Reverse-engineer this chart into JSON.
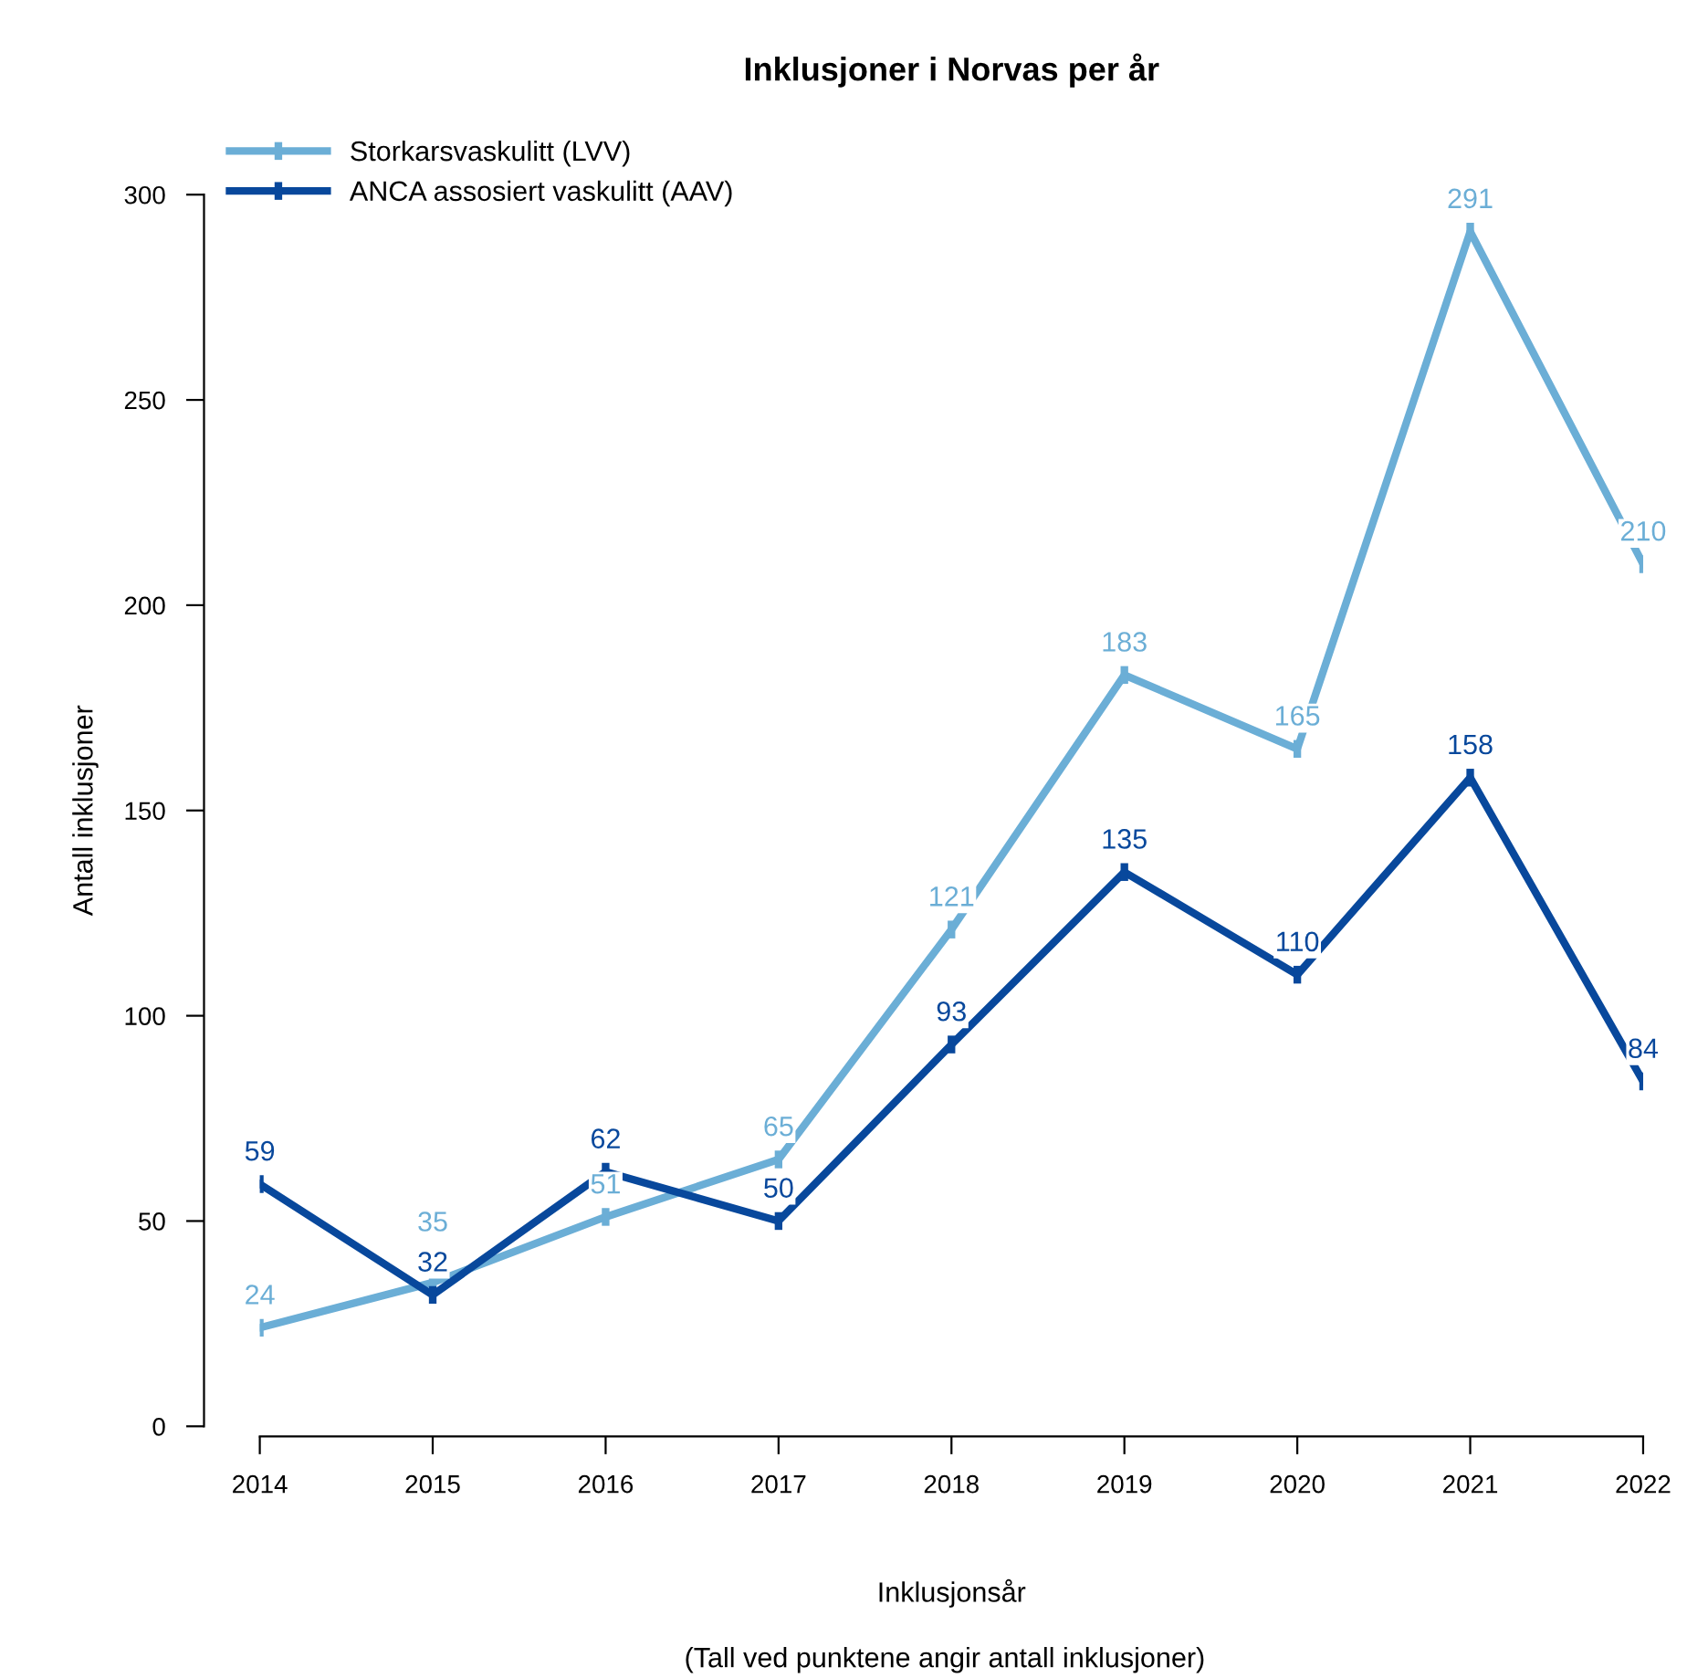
{
  "chart_data": {
    "type": "line",
    "title": "Inklusjoner i Norvas per år",
    "xlabel": "Inklusjonsår",
    "ylabel": "Antall inklusjoner",
    "annotations": [
      "(Tall ved punktene angir antall inklusjoner)"
    ],
    "x": [
      2014,
      2015,
      2016,
      2017,
      2018,
      2019,
      2020,
      2021,
      2022
    ],
    "series": [
      {
        "name": "Storkarsvaskulitt (LVV)",
        "color": "#6baed6",
        "values": [
          24,
          35,
          51,
          65,
          121,
          183,
          165,
          291,
          210
        ]
      },
      {
        "name": "ANCA assosiert vaskulitt (AAV)",
        "color": "#08489c",
        "values": [
          59,
          32,
          62,
          50,
          93,
          135,
          110,
          158,
          84
        ]
      }
    ],
    "xlim": [
      2014,
      2022
    ],
    "xticks": [
      2014,
      2015,
      2016,
      2017,
      2018,
      2019,
      2020,
      2021,
      2022
    ],
    "ylim": [
      0,
      300
    ],
    "yticks": [
      0,
      50,
      100,
      150,
      200,
      250,
      300
    ],
    "data_labels": true,
    "legend": "top left",
    "grid": false,
    "line_style": "solid"
  }
}
